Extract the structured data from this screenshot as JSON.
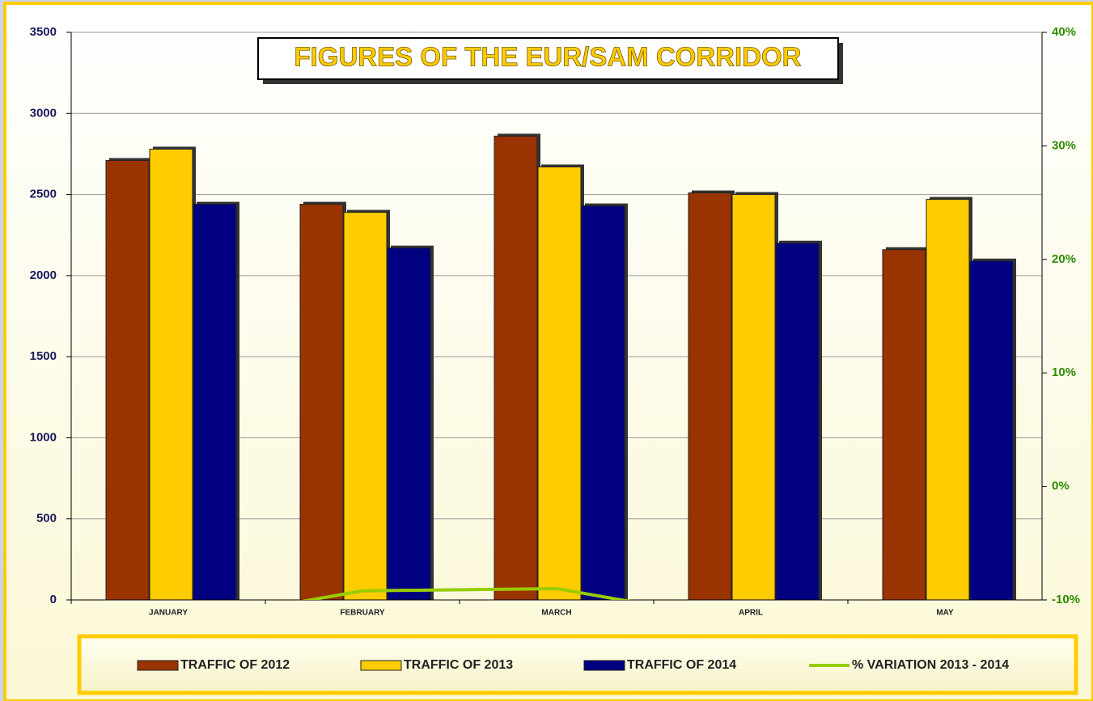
{
  "chart_data": {
    "type": "bar",
    "title": "FIGURES OF THE EUR/SAM CORRIDOR",
    "categories": [
      "JANUARY",
      "FEBRUARY",
      "MARCH",
      "APRIL",
      "MAY"
    ],
    "series": [
      {
        "name": "TRAFFIC OF 2012",
        "color": "#993300",
        "values": [
          2710,
          2440,
          2860,
          2510,
          2160
        ]
      },
      {
        "name": "TRAFFIC OF 2013",
        "color": "#ffcc00",
        "values": [
          2780,
          2390,
          2670,
          2500,
          2470
        ]
      },
      {
        "name": "TRAFFIC OF 2014",
        "color": "#000080",
        "values": [
          2440,
          2170,
          2430,
          2200,
          2090
        ]
      },
      {
        "name": "% VARIATION 2013 - 2014",
        "color": "#99cc00",
        "type": "line",
        "axis": "y2",
        "values": [
          -12.2,
          -9.2,
          -9.0,
          -12.0,
          -15.4
        ]
      }
    ],
    "ylim": [
      0,
      3500
    ],
    "yticks": [
      0,
      500,
      1000,
      1500,
      2000,
      2500,
      3000,
      3500
    ],
    "y2lim": [
      -10,
      40
    ],
    "y2ticks": [
      {
        "value": -10,
        "label": "-10%"
      },
      {
        "value": 0,
        "label": "0%"
      },
      {
        "value": 10,
        "label": "10%"
      },
      {
        "value": 20,
        "label": "20%"
      },
      {
        "value": 30,
        "label": "30%"
      },
      {
        "value": 40,
        "label": "40%"
      }
    ],
    "grid": true,
    "legend": "bottom"
  }
}
